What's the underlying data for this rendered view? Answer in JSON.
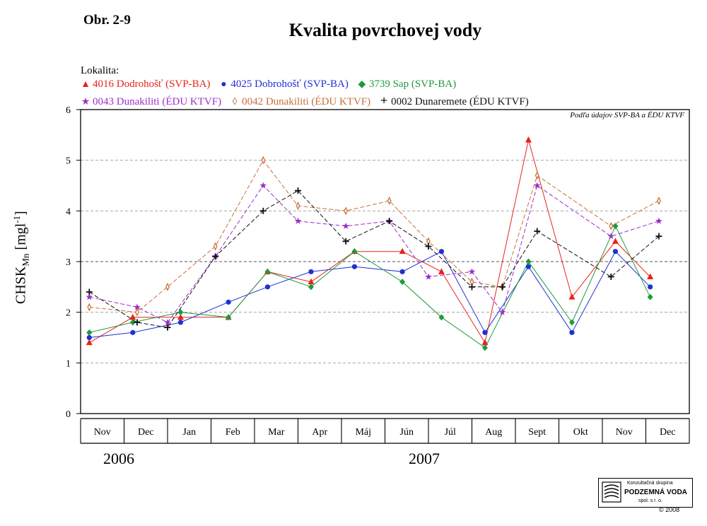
{
  "figure_label": "Obr. 2-9",
  "title": "Kvalita povrchovej vody",
  "legend_heading": "Lokalita:",
  "source_note": "Podľa údajov  SVP-BA a ÉDU KTVF",
  "ylabel": "CHSK",
  "ylabel_sub": "Mn",
  "ylabel_unit_open": " [mgl",
  "ylabel_unit_sup": "-1",
  "ylabel_unit_close": "]",
  "years": [
    "2006",
    "2007"
  ],
  "logo": {
    "line1": "Konzultačná skupina",
    "line2": "PODZEMNÁ VODA",
    "line3": "spol. s r. o."
  },
  "copyright": "© 2008",
  "chart_data": {
    "type": "line",
    "categories": [
      "Nov",
      "Dec",
      "Jan",
      "Feb",
      "Mar",
      "Apr",
      "Máj",
      "Jún",
      "Júl",
      "Aug",
      "Sept",
      "Okt",
      "Nov",
      "Dec"
    ],
    "ylim": [
      0,
      6
    ],
    "yticks": [
      0,
      1,
      2,
      3,
      4,
      5,
      6
    ],
    "grid": "horizontal dashed",
    "series": [
      {
        "name": "4016 Dodrohošť (SVP-BA)",
        "color": "#e8231c",
        "marker": "triangle",
        "dashed": false,
        "points": [
          [
            0.2,
            1.4
          ],
          [
            1.2,
            1.9
          ],
          [
            2.3,
            1.9
          ],
          [
            3.4,
            1.9
          ],
          [
            4.3,
            2.8
          ],
          [
            5.3,
            2.6
          ],
          [
            6.3,
            3.2
          ],
          [
            7.4,
            3.2
          ],
          [
            8.3,
            2.8
          ],
          [
            9.3,
            1.4
          ],
          [
            10.3,
            5.4
          ],
          [
            11.3,
            2.3
          ],
          [
            12.3,
            3.4
          ],
          [
            13.1,
            2.7
          ]
        ]
      },
      {
        "name": "4025 Dobrohošť (SVP-BA)",
        "color": "#1f2fd6",
        "marker": "circle",
        "dashed": false,
        "points": [
          [
            0.2,
            1.5
          ],
          [
            1.2,
            1.6
          ],
          [
            2.3,
            1.8
          ],
          [
            3.4,
            2.2
          ],
          [
            4.3,
            2.5
          ],
          [
            5.3,
            2.8
          ],
          [
            6.3,
            2.9
          ],
          [
            7.4,
            2.8
          ],
          [
            8.3,
            3.2
          ],
          [
            9.3,
            1.6
          ],
          [
            10.3,
            2.9
          ],
          [
            11.3,
            1.6
          ],
          [
            12.3,
            3.2
          ],
          [
            13.1,
            2.5
          ]
        ]
      },
      {
        "name": "3739 Sap (SVP-BA)",
        "color": "#1e9a3c",
        "marker": "diamond",
        "dashed": false,
        "points": [
          [
            0.2,
            1.6
          ],
          [
            1.2,
            1.8
          ],
          [
            2.3,
            2.0
          ],
          [
            3.4,
            1.9
          ],
          [
            4.3,
            2.8
          ],
          [
            5.3,
            2.5
          ],
          [
            6.3,
            3.2
          ],
          [
            7.4,
            2.6
          ],
          [
            8.3,
            1.9
          ],
          [
            9.3,
            1.3
          ],
          [
            10.3,
            3.0
          ],
          [
            11.3,
            1.8
          ],
          [
            12.3,
            3.7
          ],
          [
            13.1,
            2.3
          ]
        ]
      },
      {
        "name": "0043 Dunakiliti (ÉDU KTVF)",
        "color": "#9b2fc9",
        "marker": "star",
        "dashed": true,
        "points": [
          [
            0.2,
            2.3
          ],
          [
            1.3,
            2.1
          ],
          [
            2.0,
            1.8
          ],
          [
            3.1,
            3.1
          ],
          [
            4.2,
            4.5
          ],
          [
            5.0,
            3.8
          ],
          [
            6.1,
            3.7
          ],
          [
            7.1,
            3.8
          ],
          [
            8.0,
            2.7
          ],
          [
            9.0,
            2.8
          ],
          [
            9.7,
            2.0
          ],
          [
            10.5,
            4.5
          ],
          [
            12.2,
            3.5
          ],
          [
            13.3,
            3.8
          ]
        ]
      },
      {
        "name": "0042 Dunakiliti (ÉDU KTVF)",
        "color": "#c8703a",
        "marker": "thin-diamond",
        "dashed": true,
        "points": [
          [
            0.2,
            2.1
          ],
          [
            1.3,
            2.0
          ],
          [
            2.0,
            2.5
          ],
          [
            3.1,
            3.3
          ],
          [
            4.2,
            5.0
          ],
          [
            5.0,
            4.1
          ],
          [
            6.1,
            4.0
          ],
          [
            7.1,
            4.2
          ],
          [
            8.0,
            3.4
          ],
          [
            9.0,
            2.6
          ],
          [
            9.7,
            2.5
          ],
          [
            10.5,
            4.7
          ],
          [
            12.2,
            3.7
          ],
          [
            13.3,
            4.2
          ]
        ]
      },
      {
        "name": "0002 Dunaremete (ÉDU KTVF)",
        "color": "#111111",
        "marker": "plus",
        "dashed": true,
        "points": [
          [
            0.2,
            2.4
          ],
          [
            1.3,
            1.8
          ],
          [
            2.0,
            1.7
          ],
          [
            3.1,
            3.1
          ],
          [
            4.2,
            4.0
          ],
          [
            5.0,
            4.4
          ],
          [
            6.1,
            3.4
          ],
          [
            7.1,
            3.8
          ],
          [
            8.0,
            3.3
          ],
          [
            9.0,
            2.5
          ],
          [
            9.7,
            2.5
          ],
          [
            10.5,
            3.6
          ],
          [
            12.2,
            2.7
          ],
          [
            13.3,
            3.5
          ]
        ]
      }
    ]
  }
}
